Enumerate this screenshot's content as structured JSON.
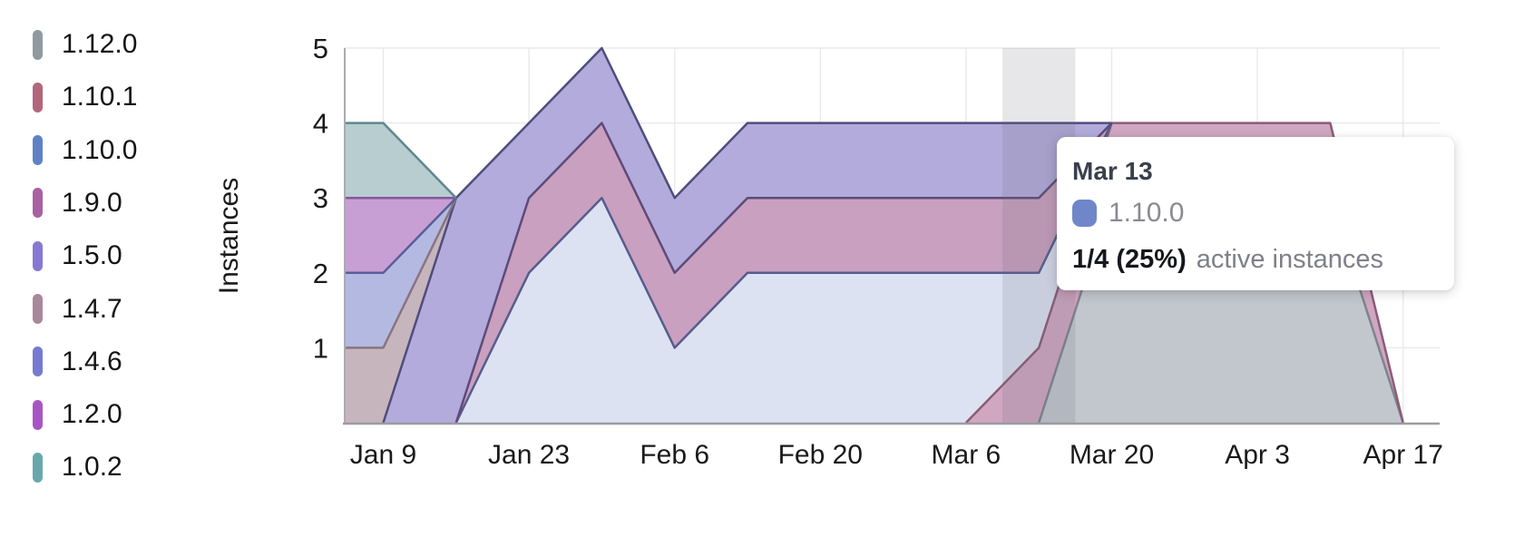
{
  "chart_data": {
    "type": "area",
    "stacked": true,
    "ylabel": "Instances",
    "x_dates": [
      "Jan 2",
      "Jan 9",
      "Jan 16",
      "Jan 23",
      "Jan 30",
      "Feb 6",
      "Feb 13",
      "Feb 20",
      "Feb 27",
      "Mar 6",
      "Mar 13",
      "Mar 20",
      "Mar 27",
      "Apr 3",
      "Apr 10",
      "Apr 17"
    ],
    "x_tick_labels": [
      "Jan 9",
      "Jan 23",
      "Feb 6",
      "Feb 20",
      "Mar 6",
      "Mar 20",
      "Apr 3",
      "Apr 17"
    ],
    "y_ticks": [
      1,
      2,
      3,
      4,
      5
    ],
    "ylim": [
      0,
      5
    ],
    "grid": true,
    "legend_position": "left",
    "series_bottom_to_top": [
      {
        "name": "1.12.0",
        "values": [
          0,
          0,
          0,
          0,
          0,
          0,
          0,
          0,
          0,
          0,
          0,
          3,
          3,
          3,
          3,
          0
        ],
        "fill": "#c2c6cd",
        "line": "#7e848e",
        "swatch": "#909aa2"
      },
      {
        "name": "1.10.1",
        "values": [
          0,
          0,
          0,
          0,
          0,
          0,
          0,
          0,
          0,
          0,
          1,
          1,
          1,
          1,
          1,
          0
        ],
        "fill": "#d0a6c1",
        "line": "#8a5c74",
        "swatch": "#b3657c"
      },
      {
        "name": "1.10.0",
        "values": [
          0,
          0,
          0,
          2,
          3,
          1,
          2,
          2,
          2,
          2,
          1,
          0,
          0,
          0,
          0,
          0
        ],
        "fill": "#dce2f2",
        "line": "#565c8d",
        "swatch": "#6081c6"
      },
      {
        "name": "1.9.0",
        "values": [
          0,
          0,
          0,
          1,
          1,
          1,
          1,
          1,
          1,
          1,
          1,
          0,
          0,
          0,
          0,
          0
        ],
        "fill": "#c9a0bf",
        "line": "#5e4a78",
        "swatch": "#aa60a5"
      },
      {
        "name": "1.5.0",
        "values": [
          0,
          0,
          3,
          1,
          1,
          1,
          1,
          1,
          1,
          1,
          1,
          0,
          0,
          0,
          0,
          0
        ],
        "fill": "#b2abdb",
        "line": "#4e4d7d",
        "swatch": "#8779d2"
      },
      {
        "name": "1.4.7",
        "values": [
          1,
          1,
          0,
          0,
          0,
          0,
          0,
          0,
          0,
          0,
          0,
          0,
          0,
          0,
          0,
          0
        ],
        "fill": "#c7b5bd",
        "line": "#8a7383",
        "swatch": "#a8889b"
      },
      {
        "name": "1.4.6",
        "values": [
          1,
          1,
          0,
          0,
          0,
          0,
          0,
          0,
          0,
          0,
          0,
          0,
          0,
          0,
          0,
          0
        ],
        "fill": "#b3b9e0",
        "line": "#595e98",
        "swatch": "#757bd0"
      },
      {
        "name": "1.2.0",
        "values": [
          1,
          1,
          0,
          0,
          0,
          0,
          0,
          0,
          0,
          0,
          0,
          0,
          0,
          0,
          0,
          0
        ],
        "fill": "#c89fd4",
        "line": "#84579c",
        "swatch": "#a855c4"
      },
      {
        "name": "1.0.2",
        "values": [
          1,
          1,
          0,
          0,
          0,
          0,
          0,
          0,
          0,
          0,
          0,
          0,
          0,
          0,
          0,
          0
        ],
        "fill": "#b7cdd0",
        "line": "#5f868e",
        "swatch": "#68a8ab"
      }
    ]
  },
  "legend": {
    "items": [
      {
        "label": "1.12.0",
        "color": "#909aa2"
      },
      {
        "label": "1.10.1",
        "color": "#b3657c"
      },
      {
        "label": "1.10.0",
        "color": "#6081c6"
      },
      {
        "label": "1.9.0",
        "color": "#aa60a5"
      },
      {
        "label": "1.5.0",
        "color": "#8779d2"
      },
      {
        "label": "1.4.7",
        "color": "#a8889b"
      },
      {
        "label": "1.4.6",
        "color": "#757bd0"
      },
      {
        "label": "1.2.0",
        "color": "#a855c4"
      },
      {
        "label": "1.0.2",
        "color": "#68a8ab"
      }
    ]
  },
  "tooltip": {
    "date": "Mar 13",
    "series_name": "1.10.0",
    "swatch_color": "#6f87c8",
    "value_text": "1/4 (25%)",
    "suffix": "active instances"
  },
  "colors": {
    "axis_line": "#9a9ba2",
    "plot_left_border": "#aaacb2",
    "gridline": "#e8eaee",
    "tick_label": "#1a1a1c",
    "hover_column": "rgba(105,107,118,0.16)"
  }
}
